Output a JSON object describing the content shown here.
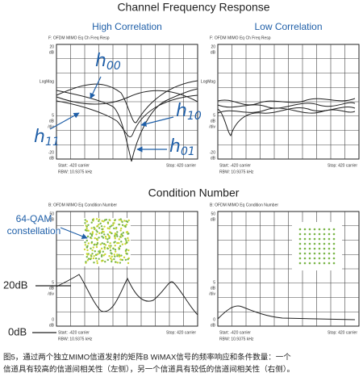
{
  "title": "Channel Frequency Response",
  "section_title": "Condition Number",
  "panels": [
    {
      "subtitle": "High Correlation",
      "header": "F: OFDM MIMO Eq Ch Freq Resp",
      "top": [
        "20",
        "dB"
      ],
      "mid": "LogMag",
      "scale": [
        "5",
        "dB",
        "/div"
      ],
      "bottom": [
        "-20",
        "dB"
      ],
      "start": "Start: -420 carrier",
      "stop": "Stop: 420 carrier",
      "rbw": "RBW: 10.9375 kHz"
    },
    {
      "subtitle": "Low Correlation",
      "header": "F: OFDM MIMO Eq Ch Freq Resp",
      "top": [
        "20",
        "dB"
      ],
      "mid": "LogMag",
      "scale": [
        "5",
        "dB",
        "/div"
      ],
      "bottom": [
        "-20",
        "dB"
      ],
      "start": "Start: -420 carrier",
      "stop": "Stop: 420 carrier",
      "rbw": "RBW: 10.9375 kHz"
    },
    {
      "header": "B: OFDM MIMO Eq Condition Number",
      "top": [
        "50",
        "dB"
      ],
      "scale": [
        "5",
        "dB",
        "/div"
      ],
      "bottom": [
        "0",
        "dB"
      ],
      "start": "Start: -420 carrier",
      "stop": "Stop: 420 carrier",
      "rbw": "RBW: 10.9375 kHz"
    },
    {
      "header": "B: OFDM MIMO Eq Condition Number",
      "top": [
        "50",
        "dB"
      ],
      "scale": [
        "5",
        "dB",
        "/div"
      ],
      "bottom": [
        "0",
        "dB"
      ],
      "start": "Start: -420 carrier",
      "stop": "Stop: 420 carrier",
      "rbw": "RBW: 10.9375 kHz"
    }
  ],
  "annotations": {
    "h00": {
      "base": "h",
      "sub": "00"
    },
    "h10": {
      "base": "h",
      "sub": "10"
    },
    "h11": {
      "base": "h",
      "sub": "11"
    },
    "h01": {
      "base": "h",
      "sub": "01"
    },
    "constellation": [
      "64-QAM",
      "constellation"
    ],
    "level_high": "20dB",
    "level_low": "0dB"
  },
  "caption": [
    "图5，通过两个独立MIMO信道发射的矩阵B WiMAX信号的频率响应和条件数量：一个",
    "信道具有较高的信道间相关性（左侧），另一个信道具有较低的信道间相关性（右侧）。"
  ]
}
